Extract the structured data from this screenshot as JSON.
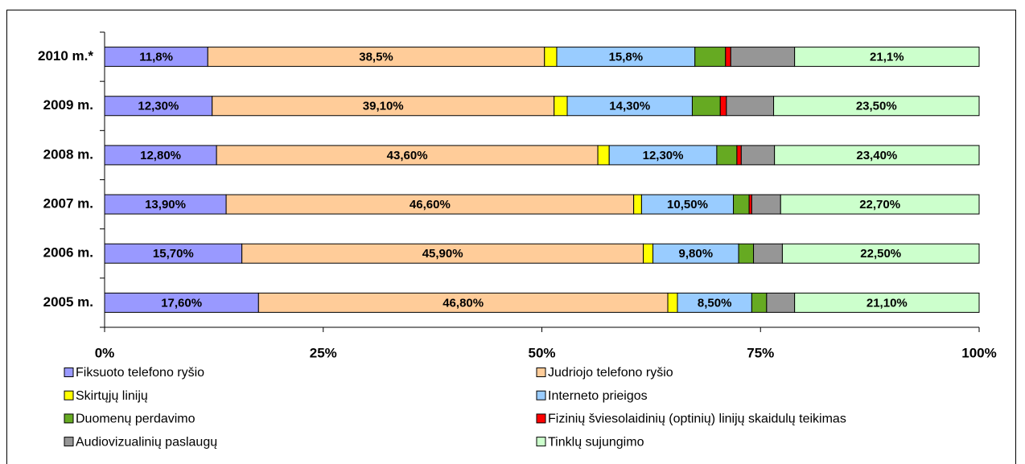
{
  "chart_data": {
    "type": "stacked-bar-horizontal",
    "categories": [
      "2010 m.*",
      "2009 m.",
      "2008 m.",
      "2007 m.",
      "2006 m.",
      "2005 m."
    ],
    "series": [
      {
        "name": "Fiksuoto telefono ryšio",
        "color": "#9999ff",
        "values": [
          11.8,
          12.3,
          12.8,
          13.9,
          15.7,
          17.6
        ],
        "value_labels": [
          "11,8%",
          "12,30%",
          "12,80%",
          "13,90%",
          "15,70%",
          "17,60%"
        ]
      },
      {
        "name": "Judriojo telefono ryšio",
        "color": "#ffcc99",
        "values": [
          38.5,
          39.1,
          43.6,
          46.6,
          45.9,
          46.8
        ],
        "value_labels": [
          "38,5%",
          "39,10%",
          "43,60%",
          "46,60%",
          "45,90%",
          "46,80%"
        ]
      },
      {
        "name": "Skirtųjų linijų",
        "color": "#ffff00",
        "values": [
          1.4,
          1.5,
          1.3,
          0.9,
          1.1,
          1.1
        ],
        "value_labels": [
          null,
          null,
          null,
          null,
          null,
          null
        ]
      },
      {
        "name": "Interneto prieigos",
        "color": "#99ccff",
        "values": [
          15.8,
          14.3,
          12.3,
          10.5,
          9.8,
          8.5
        ],
        "value_labels": [
          "15,8%",
          "14,30%",
          "12,30%",
          "10,50%",
          "9,80%",
          "8,50%"
        ]
      },
      {
        "name": "Duomenų perdavimo",
        "color": "#66aa22",
        "values": [
          3.5,
          3.2,
          2.3,
          1.8,
          1.7,
          1.7
        ],
        "value_labels": [
          null,
          null,
          null,
          null,
          null,
          null
        ]
      },
      {
        "name": "Fizinių šviesolaidinių (optinių) linijų skaidulų teikimas",
        "color": "#ff0000",
        "values": [
          0.6,
          0.7,
          0.5,
          0.3,
          0,
          0
        ],
        "value_labels": [
          null,
          null,
          null,
          null,
          null,
          null
        ]
      },
      {
        "name": "Audiovizualinių paslaugų",
        "color": "#969696",
        "values": [
          7.3,
          5.4,
          3.8,
          3.3,
          3.3,
          3.2
        ],
        "value_labels": [
          null,
          null,
          null,
          null,
          null,
          null
        ]
      },
      {
        "name": "Tinklų sujungimo",
        "color": "#ccffcc",
        "values": [
          21.1,
          23.5,
          23.4,
          22.7,
          22.5,
          21.1
        ],
        "value_labels": [
          "21,1%",
          "23,50%",
          "23,40%",
          "22,70%",
          "22,50%",
          "21,10%"
        ]
      }
    ],
    "xlim": [
      0,
      100
    ],
    "xticks": [
      {
        "value": 0,
        "label": "0%"
      },
      {
        "value": 25,
        "label": "25%"
      },
      {
        "value": 50,
        "label": "50%"
      },
      {
        "value": 75,
        "label": "75%"
      },
      {
        "value": 100,
        "label": "100%"
      }
    ],
    "legend": "bottom"
  }
}
